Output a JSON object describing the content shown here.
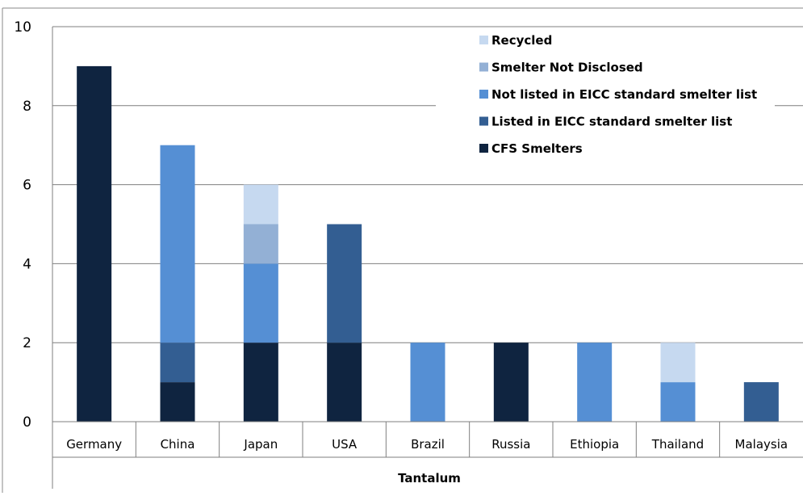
{
  "chart_data": {
    "type": "bar",
    "stacked": true,
    "categories": [
      "Germany",
      "China",
      "Japan",
      "USA",
      "Brazil",
      "Russia",
      "Ethiopia",
      "Thailand",
      "Malaysia"
    ],
    "group_label": "Tantalum",
    "ylim": [
      0,
      10
    ],
    "yticks": [
      0,
      2,
      4,
      6,
      8,
      10
    ],
    "grid": true,
    "legend_position": "top-right",
    "series": [
      {
        "name": "CFS Smelters",
        "color": "#0f2440",
        "values": [
          9,
          1,
          2,
          2,
          0,
          2,
          0,
          0,
          0
        ]
      },
      {
        "name": "Listed in EICC standard smelter list",
        "color": "#335e92",
        "values": [
          0,
          1,
          0,
          3,
          0,
          0,
          0,
          0,
          1
        ]
      },
      {
        "name": "Not listed in EICC standard smelter list",
        "color": "#558fd4",
        "values": [
          0,
          5,
          2,
          0,
          2,
          0,
          2,
          1,
          0
        ]
      },
      {
        "name": "Smelter Not Disclosed",
        "color": "#93b0d5",
        "values": [
          0,
          0,
          1,
          0,
          0,
          0,
          0,
          0,
          0
        ]
      },
      {
        "name": "Recycled",
        "color": "#c6d9f0",
        "values": [
          0,
          0,
          1,
          0,
          0,
          0,
          0,
          1,
          0
        ]
      }
    ]
  }
}
